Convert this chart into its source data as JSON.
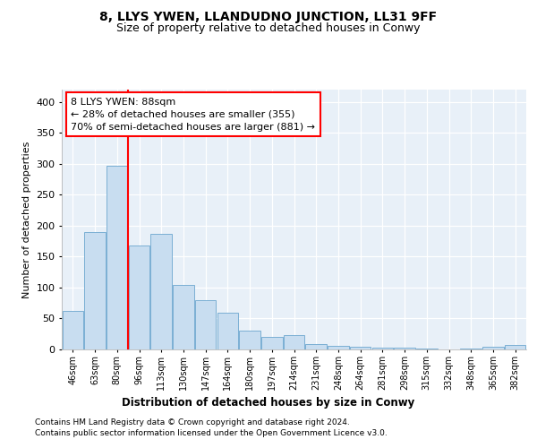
{
  "title": "8, LLYS YWEN, LLANDUDNO JUNCTION, LL31 9FF",
  "subtitle": "Size of property relative to detached houses in Conwy",
  "xlabel": "Distribution of detached houses by size in Conwy",
  "ylabel": "Number of detached properties",
  "categories": [
    "46sqm",
    "63sqm",
    "80sqm",
    "96sqm",
    "113sqm",
    "130sqm",
    "147sqm",
    "164sqm",
    "180sqm",
    "197sqm",
    "214sqm",
    "231sqm",
    "248sqm",
    "264sqm",
    "281sqm",
    "298sqm",
    "315sqm",
    "332sqm",
    "348sqm",
    "365sqm",
    "382sqm"
  ],
  "values": [
    63,
    190,
    297,
    168,
    187,
    104,
    79,
    59,
    30,
    20,
    23,
    8,
    6,
    4,
    3,
    3,
    2,
    0,
    2,
    5,
    7
  ],
  "bar_color": "#c8ddf0",
  "bar_edge_color": "#7bafd4",
  "property_line_x": 2.5,
  "annotation_line1": "8 LLYS YWEN: 88sqm",
  "annotation_line2": "← 28% of detached houses are smaller (355)",
  "annotation_line3": "70% of semi-detached houses are larger (881) →",
  "annotation_box_color": "white",
  "annotation_box_edge": "red",
  "line_color": "red",
  "ylim": [
    0,
    420
  ],
  "yticks": [
    0,
    50,
    100,
    150,
    200,
    250,
    300,
    350,
    400
  ],
  "footer1": "Contains HM Land Registry data © Crown copyright and database right 2024.",
  "footer2": "Contains public sector information licensed under the Open Government Licence v3.0.",
  "plot_bg_color": "#e8f0f8",
  "title_fontsize": 10,
  "subtitle_fontsize": 9,
  "footer_fontsize": 6.5
}
